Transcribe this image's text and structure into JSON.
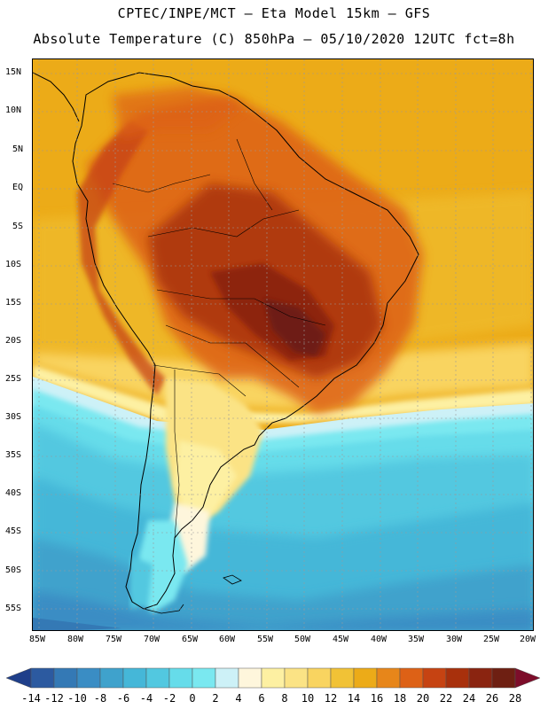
{
  "header": {
    "line1": "CPTEC/INPE/MCT –  Eta Model 15km – GFS",
    "line2": "Absolute Temperature (C) 850hPa – 05/10/2020 12UTC fct=8h"
  },
  "map": {
    "lat_labels": [
      "15N",
      "10N",
      "5N",
      "EQ",
      "5S",
      "10S",
      "15S",
      "20S",
      "25S",
      "30S",
      "35S",
      "40S",
      "45S",
      "50S",
      "55S"
    ],
    "lon_labels": [
      "85W",
      "80W",
      "75W",
      "70W",
      "65W",
      "60W",
      "55W",
      "50W",
      "45W",
      "40W",
      "35W",
      "30W",
      "25W",
      "20W"
    ],
    "field_units": "degrees C",
    "region": "South America"
  },
  "colorbar": {
    "labels": [
      "-14",
      "-12",
      "-10",
      "-8",
      "-6",
      "-4",
      "-2",
      "0",
      "2",
      "4",
      "6",
      "8",
      "10",
      "12",
      "14",
      "16",
      "18",
      "20",
      "22",
      "24",
      "26",
      "28"
    ],
    "colors": [
      "#1f3f8a",
      "#2c5aa0",
      "#3479b5",
      "#3a8dc4",
      "#3fa2cc",
      "#45b7d8",
      "#52c8e0",
      "#66dcea",
      "#7ae8f0",
      "#cdf1f7",
      "#fef6dc",
      "#fdf0a2",
      "#fbe385",
      "#f9d460",
      "#f1c236",
      "#ecab18",
      "#e7861a",
      "#dd6116",
      "#c64312",
      "#a8300c",
      "#8a2410",
      "#6e1f12",
      "#7d0d2a"
    ]
  }
}
